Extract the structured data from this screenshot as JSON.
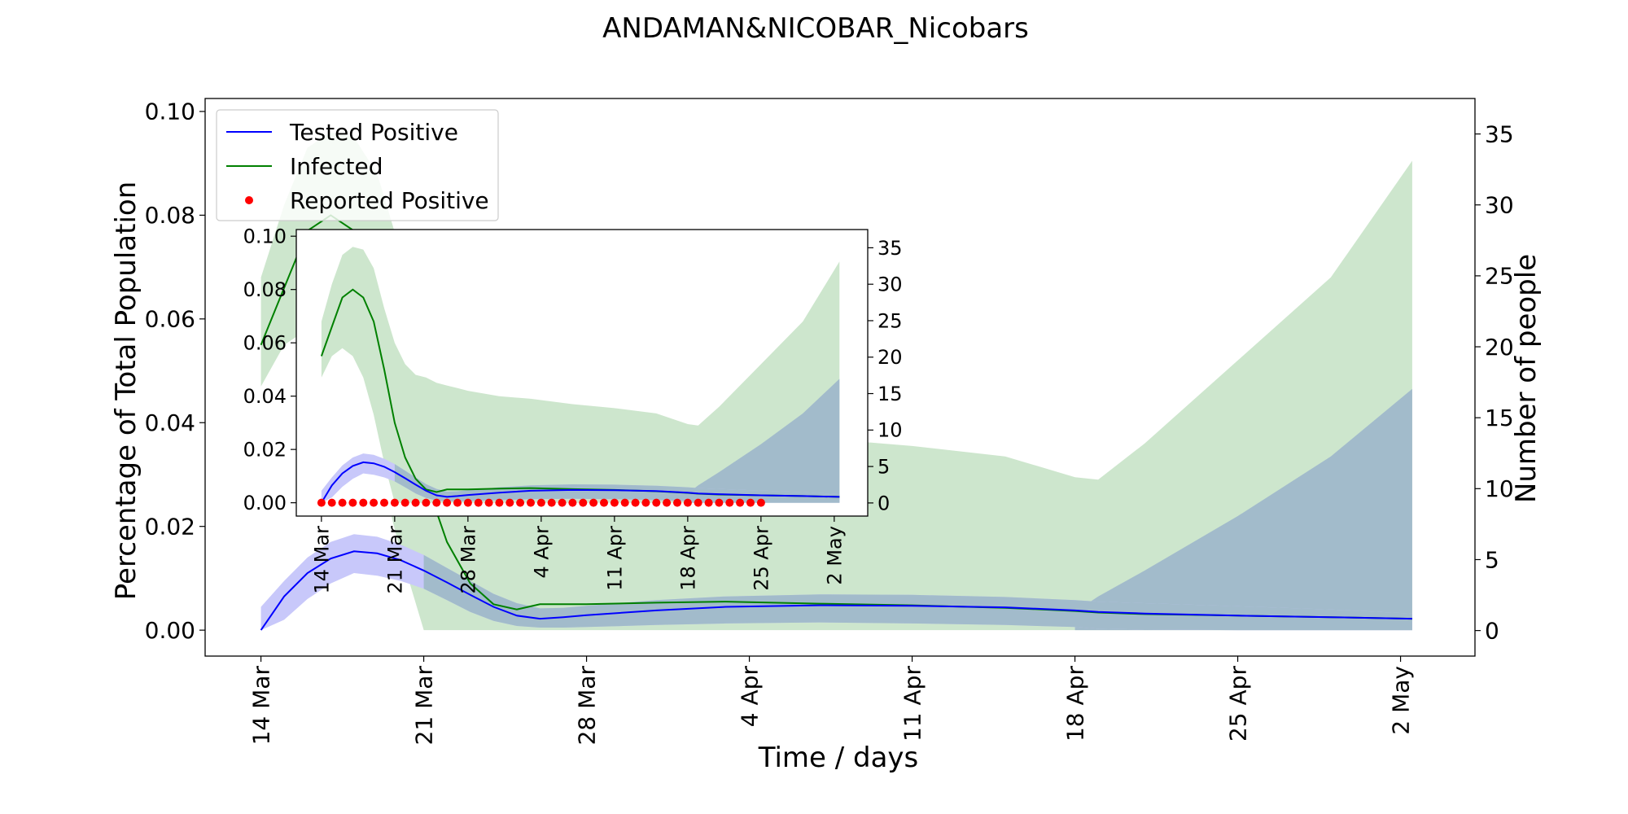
{
  "chart_data": {
    "type": "line",
    "title": "ANDAMAN&NICOBAR_Nicobars",
    "xlabel": "Time / days",
    "ylabel": "Percentage of Total Population",
    "ylabel_right": "Number of people",
    "x_start": "14 Mar",
    "x_ticks": [
      {
        "day": 0,
        "label": "14 Mar"
      },
      {
        "day": 7,
        "label": "21 Mar"
      },
      {
        "day": 14,
        "label": "28 Mar"
      },
      {
        "day": 21,
        "label": "4 Apr"
      },
      {
        "day": 28,
        "label": "11 Apr"
      },
      {
        "day": 35,
        "label": "18 Apr"
      },
      {
        "day": 42,
        "label": "25 Apr"
      },
      {
        "day": 49,
        "label": "2 May"
      }
    ],
    "xlim_days": [
      -2.4,
      52.2
    ],
    "ylim_left": [
      -0.005,
      0.1025
    ],
    "ylim_right": [
      -1.8,
      37.5
    ],
    "yticks_left": [
      "0.00",
      "0.02",
      "0.04",
      "0.06",
      "0.08",
      "0.10"
    ],
    "yticks_right": [
      "0",
      "5",
      "10",
      "15",
      "20",
      "25",
      "30",
      "35"
    ],
    "legend": {
      "placement": "top-left",
      "entries": [
        "Tested Positive",
        "Infected",
        "Reported Positive"
      ]
    },
    "colors": {
      "tested": "#0000ff",
      "tested_band": "#c8c8fa",
      "infected": "#008000",
      "infected_band": "#cde6cd",
      "forecast_band": "#a2bbcb",
      "reported": "#ff0000"
    },
    "series": [
      {
        "name": "Tested Positive",
        "x": [
          0,
          1,
          2,
          3,
          4,
          5,
          6,
          7,
          8,
          9,
          10,
          11,
          12,
          13,
          14,
          17,
          20,
          24,
          28,
          32,
          35,
          36,
          38,
          42,
          46,
          49.5
        ],
        "y": [
          0.0,
          0.0065,
          0.011,
          0.0138,
          0.0152,
          0.0148,
          0.0135,
          0.0115,
          0.0092,
          0.0068,
          0.0045,
          0.0028,
          0.0022,
          0.0025,
          0.0029,
          0.0038,
          0.0045,
          0.0048,
          0.0047,
          0.0044,
          0.0038,
          0.0035,
          0.0032,
          0.0028,
          0.0025,
          0.0022
        ]
      },
      {
        "name": "Infected",
        "x": [
          0,
          1,
          2,
          3,
          4,
          5,
          6,
          7,
          8,
          9,
          10,
          11,
          12,
          13,
          14,
          17,
          20,
          24,
          28,
          32,
          35,
          36,
          38,
          42,
          46,
          49.5
        ],
        "y": [
          0.055,
          0.066,
          0.077,
          0.08,
          0.077,
          0.068,
          0.05,
          0.03,
          0.017,
          0.009,
          0.005,
          0.004,
          0.005,
          0.005,
          0.005,
          0.0053,
          0.0055,
          0.0051,
          0.0048,
          0.0043,
          0.0037,
          0.0034,
          0.0031,
          0.0028,
          0.0025,
          0.0022
        ]
      },
      {
        "name": "Reported Positive",
        "x": [
          0,
          1,
          2,
          3,
          4,
          5,
          6,
          7,
          8,
          9,
          10,
          11,
          12,
          13,
          14,
          15,
          16,
          17,
          18,
          19,
          20,
          21,
          22,
          23,
          24,
          25,
          26,
          27,
          28,
          29,
          30,
          31,
          32,
          33,
          34,
          35,
          36,
          37,
          38,
          39,
          40,
          41,
          42
        ],
        "y": [
          0,
          0,
          0,
          0,
          0,
          0,
          0,
          0,
          0,
          0,
          0,
          0,
          0,
          0,
          0,
          0,
          0,
          0,
          0,
          0,
          0,
          0,
          0,
          0,
          0,
          0,
          0,
          0,
          0,
          0,
          0,
          0,
          0,
          0,
          0,
          0,
          0,
          0,
          0,
          0,
          0,
          0,
          0
        ]
      }
    ],
    "bands": {
      "tested_band": {
        "x": [
          0,
          1,
          2,
          3,
          4,
          5,
          6,
          7,
          8,
          9,
          10,
          11,
          12,
          13,
          14,
          17,
          20,
          24,
          28,
          32,
          35,
          36,
          38,
          42,
          46,
          49.5
        ],
        "lower": [
          0.0,
          0.002,
          0.006,
          0.009,
          0.011,
          0.0105,
          0.0095,
          0.008,
          0.0058,
          0.0035,
          0.0018,
          0.0008,
          0.0005,
          0.0005,
          0.0006,
          0.001,
          0.0013,
          0.0015,
          0.0013,
          0.001,
          0.0006,
          0.0003,
          0.0001,
          0.0,
          0.0,
          0.0
        ],
        "upper": [
          0.0045,
          0.0095,
          0.014,
          0.017,
          0.0185,
          0.018,
          0.0165,
          0.0145,
          0.012,
          0.0095,
          0.007,
          0.0052,
          0.0042,
          0.0043,
          0.0047,
          0.0058,
          0.0065,
          0.0069,
          0.0068,
          0.0064,
          0.0058,
          0.0055,
          0.0052,
          0.0046,
          0.004,
          0.0032
        ]
      },
      "infected_band": {
        "x": [
          0,
          1,
          2,
          3,
          4,
          5,
          6,
          7,
          8,
          9,
          10,
          11,
          12,
          13,
          14,
          17,
          20,
          24,
          28,
          32,
          35,
          36,
          38,
          42,
          46,
          49.5
        ],
        "lower": [
          0.047,
          0.055,
          0.058,
          0.055,
          0.047,
          0.033,
          0.015,
          0.0,
          0.0,
          0.0,
          0.0,
          0.0,
          0.0,
          0.0,
          0.0,
          0.0,
          0.0,
          0.0,
          0.0,
          0.0,
          0.0,
          0.0,
          0.0,
          0.0,
          0.0,
          0.0
        ],
        "upper": [
          0.068,
          0.082,
          0.093,
          0.096,
          0.095,
          0.088,
          0.073,
          0.06,
          0.052,
          0.048,
          0.047,
          0.045,
          0.044,
          0.043,
          0.042,
          0.04,
          0.039,
          0.037,
          0.0355,
          0.0335,
          0.0295,
          0.029,
          0.036,
          0.052,
          0.068,
          0.0905
        ]
      },
      "forecast_band": {
        "x": [
          35,
          36,
          38,
          42,
          46,
          49.5
        ],
        "lower": [
          0.0,
          0.0,
          0.0,
          0.0,
          0.0,
          0.0
        ],
        "upper": [
          0.0035,
          0.0065,
          0.0115,
          0.022,
          0.0335,
          0.0465
        ]
      }
    }
  }
}
